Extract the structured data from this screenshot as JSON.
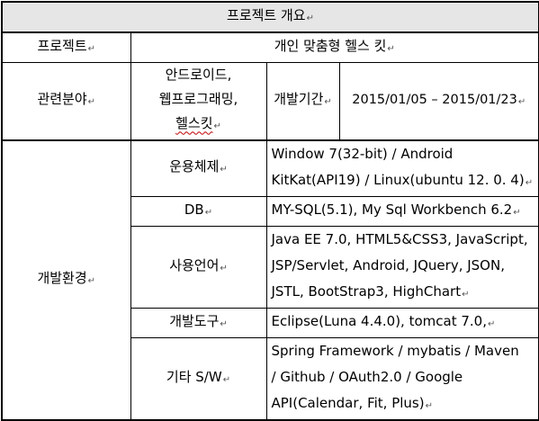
{
  "title": "프로젝트 개요",
  "project": {
    "label": "프로젝트",
    "value": "개인 맞춤형 헬스 킷"
  },
  "related": {
    "label": "관련분야",
    "value_lines": [
      "안드로이드,",
      "웹프로그래밍,",
      "헬스킷"
    ],
    "period_label": "개발기간",
    "period_value": "2015/01/05 – 2015/01/23"
  },
  "environment": {
    "label": "개발환경",
    "rows": [
      {
        "label": "운용체제",
        "lines": [
          "Window 7(32-bit) / Android",
          "KitKat(API19) / Linux(ubuntu 12. 0. 4)"
        ]
      },
      {
        "label": "DB",
        "lines": [
          "MY-SQL(5.1), My Sql Workbench 6.2"
        ]
      },
      {
        "label": "사용언어",
        "lines": [
          "Java EE 7.0, HTML5&CSS3, JavaScript,",
          "JSP/Servlet, Android, JQuery, JSON,",
          "JSTL, BootStrap3, HighChart"
        ]
      },
      {
        "label": "개발도구",
        "lines": [
          "Eclipse(Luna 4.4.0), tomcat 7.0,"
        ]
      },
      {
        "label": "기타 S/W",
        "lines": [
          "Spring Framework / mybatis / Maven",
          "/ Github / OAuth2.0 / Google",
          "API(Calendar, Fit, Plus)"
        ]
      }
    ]
  }
}
